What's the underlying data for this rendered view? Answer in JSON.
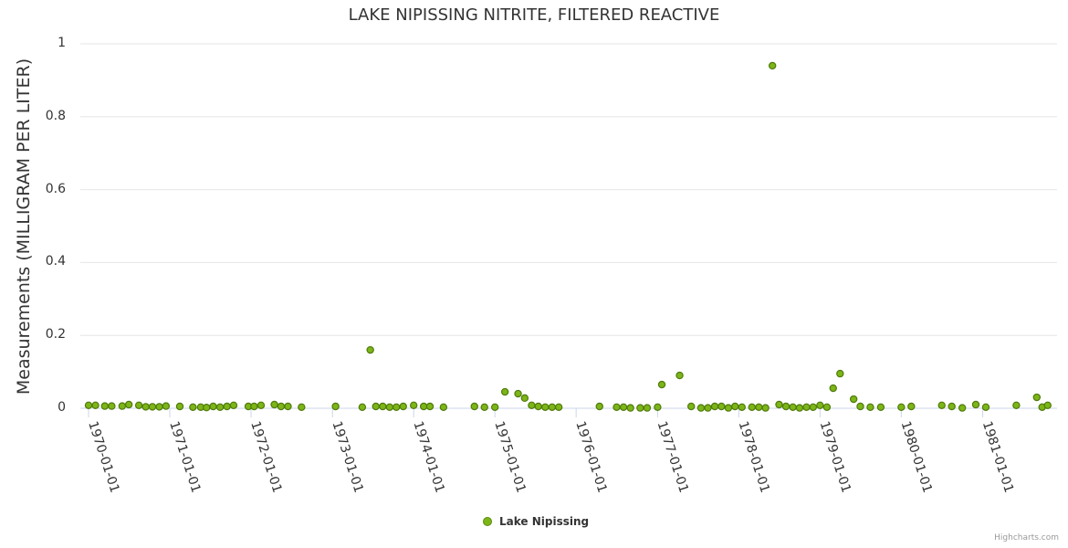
{
  "chart_data": {
    "type": "scatter",
    "title": "LAKE NIPISSING NITRITE, FILTERED REACTIVE",
    "ylabel": "Measurements (MILLIGRAM PER LITER)",
    "xlabel": "",
    "ylim": [
      0,
      1
    ],
    "yticks": [
      "0",
      "0.2",
      "0.4",
      "0.6",
      "0.8",
      "1"
    ],
    "xticks": [
      "1970-01-01",
      "1971-01-01",
      "1972-01-01",
      "1973-01-01",
      "1974-01-01",
      "1975-01-01",
      "1976-01-01",
      "1977-01-01",
      "1978-01-01",
      "1979-01-01",
      "1980-01-01",
      "1981-01-01"
    ],
    "legend_position": "bottom-center",
    "series": [
      {
        "name": "Lake Nipissing",
        "color": "#7cb517",
        "points": [
          {
            "x": "1970-01-01",
            "y": 0.008
          },
          {
            "x": "1970-02-01",
            "y": 0.008
          },
          {
            "x": "1970-03-15",
            "y": 0.006
          },
          {
            "x": "1970-04-15",
            "y": 0.006
          },
          {
            "x": "1970-06-01",
            "y": 0.006
          },
          {
            "x": "1970-07-01",
            "y": 0.01
          },
          {
            "x": "1970-08-15",
            "y": 0.008
          },
          {
            "x": "1970-09-15",
            "y": 0.004
          },
          {
            "x": "1970-10-15",
            "y": 0.004
          },
          {
            "x": "1970-11-15",
            "y": 0.004
          },
          {
            "x": "1970-12-15",
            "y": 0.006
          },
          {
            "x": "1971-02-15",
            "y": 0.005
          },
          {
            "x": "1971-04-15",
            "y": 0.003
          },
          {
            "x": "1971-05-20",
            "y": 0.003
          },
          {
            "x": "1971-06-15",
            "y": 0.002
          },
          {
            "x": "1971-07-15",
            "y": 0.005
          },
          {
            "x": "1971-08-15",
            "y": 0.003
          },
          {
            "x": "1971-09-15",
            "y": 0.005
          },
          {
            "x": "1971-10-15",
            "y": 0.008
          },
          {
            "x": "1971-12-20",
            "y": 0.005
          },
          {
            "x": "1972-01-15",
            "y": 0.005
          },
          {
            "x": "1972-02-15",
            "y": 0.008
          },
          {
            "x": "1972-04-15",
            "y": 0.01
          },
          {
            "x": "1972-05-15",
            "y": 0.005
          },
          {
            "x": "1972-06-15",
            "y": 0.005
          },
          {
            "x": "1972-08-15",
            "y": 0.003
          },
          {
            "x": "1973-01-15",
            "y": 0.005
          },
          {
            "x": "1973-05-15",
            "y": 0.003
          },
          {
            "x": "1973-06-20",
            "y": 0.16
          },
          {
            "x": "1973-07-15",
            "y": 0.005
          },
          {
            "x": "1973-08-15",
            "y": 0.005
          },
          {
            "x": "1973-09-15",
            "y": 0.003
          },
          {
            "x": "1973-10-15",
            "y": 0.003
          },
          {
            "x": "1973-11-15",
            "y": 0.005
          },
          {
            "x": "1974-01-01",
            "y": 0.008
          },
          {
            "x": "1974-02-15",
            "y": 0.005
          },
          {
            "x": "1974-03-15",
            "y": 0.005
          },
          {
            "x": "1974-05-15",
            "y": 0.003
          },
          {
            "x": "1974-10-01",
            "y": 0.005
          },
          {
            "x": "1974-11-15",
            "y": 0.003
          },
          {
            "x": "1975-01-01",
            "y": 0.003
          },
          {
            "x": "1975-02-15",
            "y": 0.045
          },
          {
            "x": "1975-04-15",
            "y": 0.04
          },
          {
            "x": "1975-05-15",
            "y": 0.028
          },
          {
            "x": "1975-06-15",
            "y": 0.008
          },
          {
            "x": "1975-07-15",
            "y": 0.005
          },
          {
            "x": "1975-08-15",
            "y": 0.003
          },
          {
            "x": "1975-09-15",
            "y": 0.003
          },
          {
            "x": "1975-10-15",
            "y": 0.003
          },
          {
            "x": "1976-04-15",
            "y": 0.005
          },
          {
            "x": "1976-07-01",
            "y": 0.003
          },
          {
            "x": "1976-08-01",
            "y": 0.003
          },
          {
            "x": "1976-09-01",
            "y": 0.001
          },
          {
            "x": "1976-10-15",
            "y": 0.001
          },
          {
            "x": "1976-11-15",
            "y": 0.001
          },
          {
            "x": "1977-01-01",
            "y": 0.003
          },
          {
            "x": "1977-01-20",
            "y": 0.065
          },
          {
            "x": "1977-04-10",
            "y": 0.09
          },
          {
            "x": "1977-06-01",
            "y": 0.005
          },
          {
            "x": "1977-07-15",
            "y": 0.001
          },
          {
            "x": "1977-08-15",
            "y": 0.001
          },
          {
            "x": "1977-09-15",
            "y": 0.005
          },
          {
            "x": "1977-10-15",
            "y": 0.005
          },
          {
            "x": "1977-11-15",
            "y": 0.001
          },
          {
            "x": "1977-12-15",
            "y": 0.005
          },
          {
            "x": "1978-01-15",
            "y": 0.003
          },
          {
            "x": "1978-03-01",
            "y": 0.003
          },
          {
            "x": "1978-04-01",
            "y": 0.003
          },
          {
            "x": "1978-05-01",
            "y": 0.001
          },
          {
            "x": "1978-06-01",
            "y": 0.94
          },
          {
            "x": "1978-07-01",
            "y": 0.01
          },
          {
            "x": "1978-08-01",
            "y": 0.005
          },
          {
            "x": "1978-09-01",
            "y": 0.003
          },
          {
            "x": "1978-10-01",
            "y": 0.001
          },
          {
            "x": "1978-11-01",
            "y": 0.003
          },
          {
            "x": "1978-12-01",
            "y": 0.003
          },
          {
            "x": "1979-01-01",
            "y": 0.008
          },
          {
            "x": "1979-02-01",
            "y": 0.003
          },
          {
            "x": "1979-03-01",
            "y": 0.055
          },
          {
            "x": "1979-04-01",
            "y": 0.095
          },
          {
            "x": "1979-06-01",
            "y": 0.025
          },
          {
            "x": "1979-07-01",
            "y": 0.005
          },
          {
            "x": "1979-08-15",
            "y": 0.003
          },
          {
            "x": "1979-10-01",
            "y": 0.003
          },
          {
            "x": "1980-01-01",
            "y": 0.003
          },
          {
            "x": "1980-02-15",
            "y": 0.005
          },
          {
            "x": "1980-07-01",
            "y": 0.008
          },
          {
            "x": "1980-08-15",
            "y": 0.005
          },
          {
            "x": "1980-10-01",
            "y": 0.001
          },
          {
            "x": "1980-12-01",
            "y": 0.01
          },
          {
            "x": "1981-01-15",
            "y": 0.003
          },
          {
            "x": "1981-06-01",
            "y": 0.008
          },
          {
            "x": "1981-09-01",
            "y": 0.03
          },
          {
            "x": "1981-09-25",
            "y": 0.003
          },
          {
            "x": "1981-10-20",
            "y": 0.008
          }
        ]
      }
    ]
  },
  "credit": "Highcharts.com"
}
